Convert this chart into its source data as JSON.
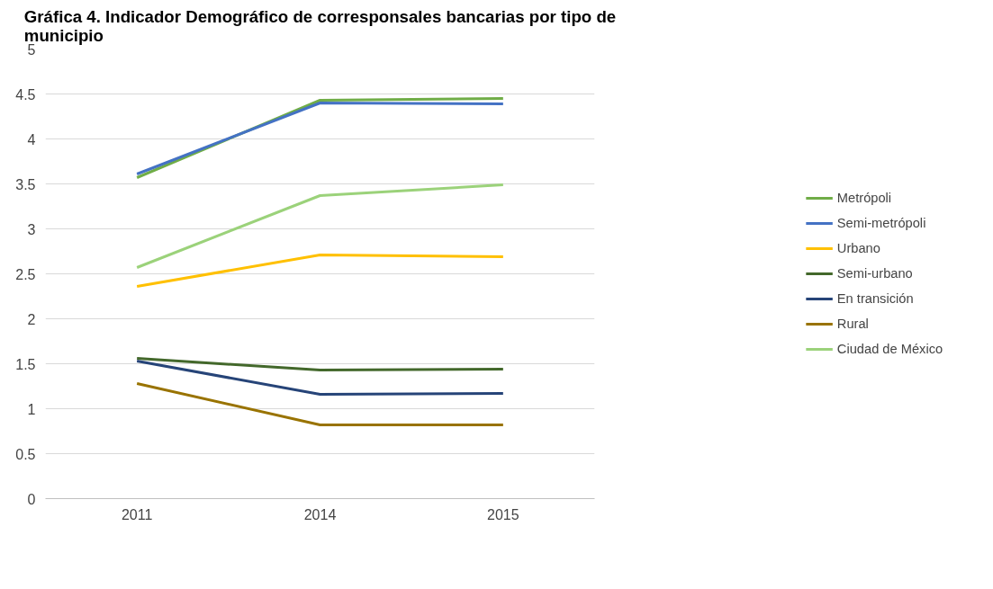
{
  "chart_data": {
    "type": "line",
    "title": "Gráfica 4. Indicador Demográfico de corresponsales bancarias por tipo de municipio",
    "categories": [
      "2011",
      "2014",
      "2015"
    ],
    "ylim": [
      0,
      5
    ],
    "yticks": [
      0,
      0.5,
      1,
      1.5,
      2,
      2.5,
      3,
      3.5,
      4,
      4.5,
      5
    ],
    "grid": "y",
    "legend": "right",
    "line_style": "solid",
    "series": [
      {
        "name": "Metrópoli",
        "color": "#70ad47",
        "values": [
          3.57,
          4.43,
          4.45
        ]
      },
      {
        "name": "Semi-metrópoli",
        "color": "#4472c4",
        "values": [
          3.61,
          4.4,
          4.39
        ]
      },
      {
        "name": "Urbano",
        "color": "#ffc000",
        "values": [
          2.36,
          2.71,
          2.69
        ]
      },
      {
        "name": "Semi-urbano",
        "color": "#43682b",
        "values": [
          1.56,
          1.43,
          1.44
        ]
      },
      {
        "name": "En transición",
        "color": "#264478",
        "values": [
          1.53,
          1.16,
          1.17
        ]
      },
      {
        "name": "Rural",
        "color": "#997300",
        "values": [
          1.28,
          0.82,
          0.82
        ]
      },
      {
        "name": "Ciudad de México",
        "color": "#9bd27a",
        "values": [
          2.57,
          3.37,
          3.49
        ]
      }
    ]
  }
}
